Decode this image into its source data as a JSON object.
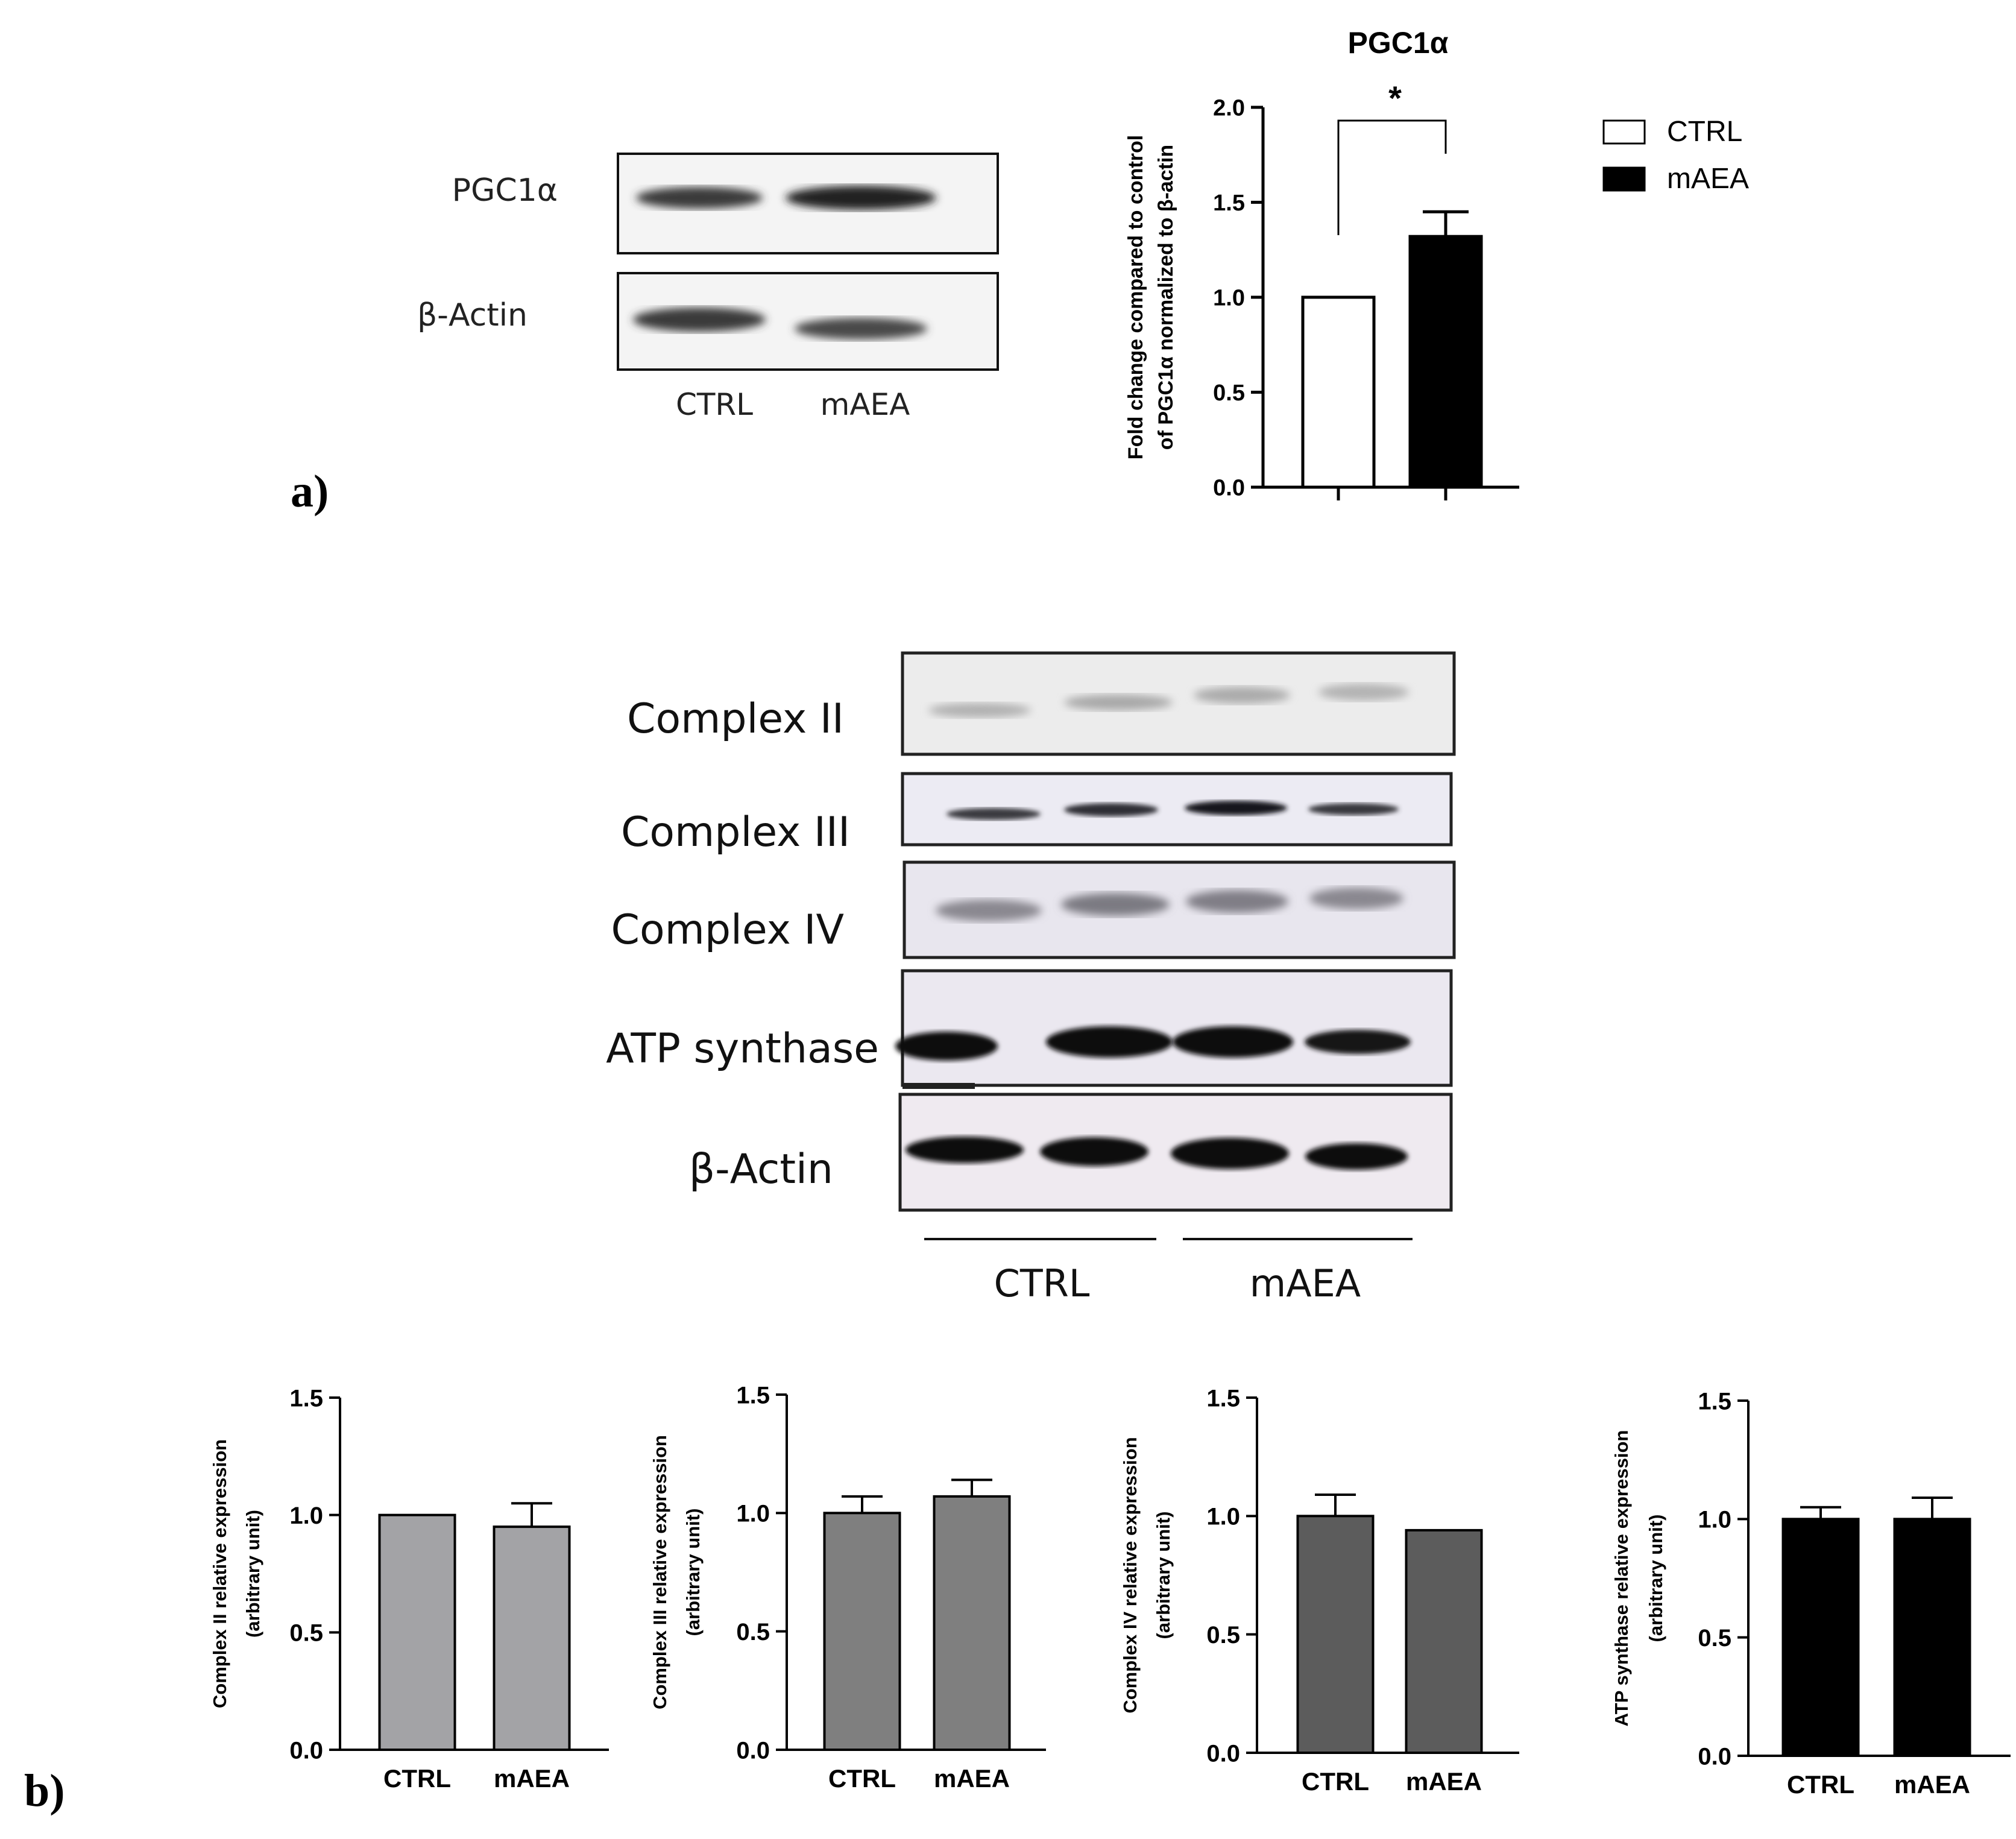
{
  "panel_labels": {
    "a": "a)",
    "b": "b)"
  },
  "blot_a": {
    "rows": [
      "PGC1α",
      "β-Actin"
    ],
    "lanes": [
      "CTRL",
      "mAEA"
    ]
  },
  "blot_b": {
    "rows": [
      "Complex II",
      "Complex III",
      "Complex IV",
      "ATP synthase",
      "β-Actin"
    ],
    "groups": [
      "CTRL",
      "mAEA"
    ]
  },
  "legend": {
    "items": [
      {
        "label": "CTRL",
        "fill": "#ffffff"
      },
      {
        "label": "mAEA",
        "fill": "#000000"
      }
    ]
  },
  "chart_data": [
    {
      "id": "pgc1a",
      "type": "bar",
      "title": "PGC1α",
      "ylabel": [
        "Fold change compared to control",
        "of PGC1α normalized to β-actin"
      ],
      "xlabel": "",
      "categories": [
        "CTRL",
        "mAEA"
      ],
      "show_category_labels": false,
      "values": [
        1.0,
        1.32
      ],
      "errors": [
        0,
        0.13
      ],
      "ylim": [
        0,
        2.0
      ],
      "yticks": [
        "0.0",
        "0.5",
        "1.0",
        "1.5",
        "2.0"
      ],
      "colors": [
        "#ffffff",
        "#000000"
      ],
      "significance": "*"
    },
    {
      "id": "complex2",
      "type": "bar",
      "title": "",
      "ylabel": [
        "Complex II relative expression",
        "(arbitrary unit)"
      ],
      "categories": [
        "CTRL",
        "mAEA"
      ],
      "show_category_labels": true,
      "values": [
        1.0,
        0.95
      ],
      "errors": [
        0,
        0.1
      ],
      "ylim": [
        0,
        1.5
      ],
      "yticks": [
        "0.0",
        "0.5",
        "1.0",
        "1.5"
      ],
      "colors": [
        "#a3a3a6",
        "#a3a3a6"
      ]
    },
    {
      "id": "complex3",
      "type": "bar",
      "title": "",
      "ylabel": [
        "Complex III relative expression",
        "(arbitrary unit)"
      ],
      "categories": [
        "CTRL",
        "mAEA"
      ],
      "show_category_labels": true,
      "values": [
        1.0,
        1.07
      ],
      "errors": [
        0.07,
        0.07
      ],
      "ylim": [
        0,
        1.5
      ],
      "yticks": [
        "0.0",
        "0.5",
        "1.0",
        "1.5"
      ],
      "colors": [
        "#7f7f7f",
        "#7f7f7f"
      ]
    },
    {
      "id": "complex4",
      "type": "bar",
      "title": "",
      "ylabel": [
        "Complex IV relative expression",
        "(arbitrary unit)"
      ],
      "categories": [
        "CTRL",
        "mAEA"
      ],
      "show_category_labels": true,
      "values": [
        1.0,
        0.94
      ],
      "errors": [
        0.09,
        0
      ],
      "ylim": [
        0,
        1.5
      ],
      "yticks": [
        "0.0",
        "0.5",
        "1.0",
        "1.5"
      ],
      "colors": [
        "#5c5c5c",
        "#5c5c5c"
      ]
    },
    {
      "id": "atp",
      "type": "bar",
      "title": "",
      "ylabel": [
        "ATP synthase relative expression",
        "(arbitrary unit)"
      ],
      "categories": [
        "CTRL",
        "mAEA"
      ],
      "show_category_labels": true,
      "values": [
        1.0,
        1.0
      ],
      "errors": [
        0.05,
        0.09
      ],
      "ylim": [
        0,
        1.5
      ],
      "yticks": [
        "0.0",
        "0.5",
        "1.0",
        "1.5"
      ],
      "colors": [
        "#000000",
        "#000000"
      ]
    }
  ]
}
